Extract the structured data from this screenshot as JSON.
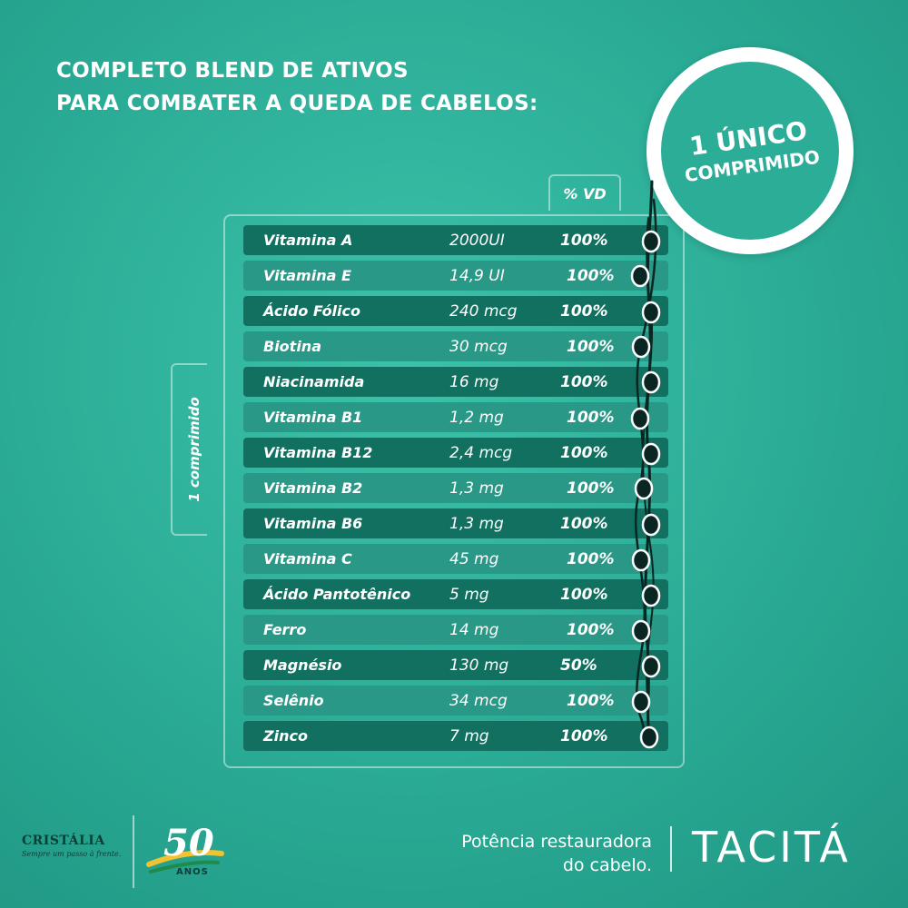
{
  "headline": {
    "line1": "COMPLETO BLEND DE ATIVOS",
    "line2": "PARA COMBATER A QUEDA DE CABELOS:"
  },
  "badge": {
    "line1": "1 ÚNICO",
    "line2": "COMPRIMIDO"
  },
  "table": {
    "vd_header": "% VD",
    "side_label": "1 comprimido",
    "rows": [
      {
        "name": "Vitamina A",
        "qty": "2000UI",
        "vd": "100%"
      },
      {
        "name": "Vitamina E",
        "qty": "14,9 UI",
        "vd": "100%"
      },
      {
        "name": "Ácido Fólico",
        "qty": "240 mcg",
        "vd": "100%"
      },
      {
        "name": "Biotina",
        "qty": "30 mcg",
        "vd": "100%"
      },
      {
        "name": "Niacinamida",
        "qty": "16 mg",
        "vd": "100%"
      },
      {
        "name": "Vitamina B1",
        "qty": "1,2 mg",
        "vd": "100%"
      },
      {
        "name": "Vitamina B12",
        "qty": "2,4 mcg",
        "vd": "100%"
      },
      {
        "name": "Vitamina B2",
        "qty": "1,3 mg",
        "vd": "100%"
      },
      {
        "name": "Vitamina B6",
        "qty": "1,3 mg",
        "vd": "100%"
      },
      {
        "name": "Vitamina C",
        "qty": "45 mg",
        "vd": "100%"
      },
      {
        "name": "Ácido Pantotênico",
        "qty": "5 mg",
        "vd": "100%"
      },
      {
        "name": "Ferro",
        "qty": "14 mg",
        "vd": "100%"
      },
      {
        "name": "Magnésio",
        "qty": "130 mg",
        "vd": "50%"
      },
      {
        "name": "Selênio",
        "qty": "34 mcg",
        "vd": "100%"
      },
      {
        "name": "Zinco",
        "qty": "7 mg",
        "vd": "100%"
      }
    ]
  },
  "footer": {
    "company": "CRISTÁLIA",
    "company_tagline": "Sempre um passo à frente.",
    "anniversary_number": "50",
    "anniversary_label": "ANOS",
    "tagline_line1": "Potência restauradora",
    "tagline_line2": "do cabelo.",
    "brand": "TACITÁ"
  },
  "colors": {
    "background": "#2aab95",
    "row_dark": "#11705f",
    "row_light": "#2a9886",
    "text": "#ffffff"
  }
}
